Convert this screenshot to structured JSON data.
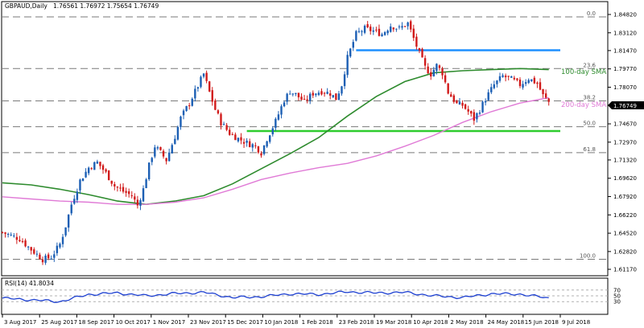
{
  "header": {
    "symbol": "GBPAUD,Daily",
    "ohlc": "1.76561 1.76972 1.75654 1.76749"
  },
  "colors": {
    "candle_up": "#1c5fb4",
    "candle_down": "#d11b1b",
    "sma100": "#2e8b2e",
    "sma200": "#e07ad6",
    "support": "#2ecc2e",
    "resistance": "#1e90ff",
    "rsi_line": "#1c3fd1",
    "price_label_bg": "#000000"
  },
  "chart_data": [
    {
      "type": "candlestick",
      "title": "GBPAUD,Daily",
      "ylim": [
        1.6102,
        1.8482
      ],
      "y_ticks": [
        "1.84820",
        "1.83120",
        "1.81470",
        "1.79770",
        "1.78070",
        "1.76370",
        "1.74670",
        "1.72970",
        "1.71320",
        "1.69620",
        "1.67920",
        "1.66220",
        "1.64520",
        "1.62820",
        "1.61170"
      ],
      "x_ticks": [
        "3 Aug 2017",
        "25 Aug 2017",
        "18 Sep 2017",
        "10 Oct 2017",
        "1 Nov 2017",
        "23 Nov 2017",
        "15 Dec 2017",
        "10 Jan 2018",
        "1 Feb 2018",
        "23 Feb 2018",
        "19 Mar 2018",
        "10 Apr 2018",
        "2 May 2018",
        "24 May 2018",
        "15 Jun 2018",
        "9 Jul 2018"
      ],
      "last_price": "1.76749",
      "close_path": [
        {
          "x": 0,
          "y": 1.646
        },
        {
          "x": 6,
          "y": 1.64
        },
        {
          "x": 10,
          "y": 1.63
        },
        {
          "x": 14,
          "y": 1.621
        },
        {
          "x": 17,
          "y": 1.623
        },
        {
          "x": 20,
          "y": 1.635
        },
        {
          "x": 22,
          "y": 1.652
        },
        {
          "x": 24,
          "y": 1.672
        },
        {
          "x": 27,
          "y": 1.694
        },
        {
          "x": 30,
          "y": 1.706
        },
        {
          "x": 33,
          "y": 1.711
        },
        {
          "x": 36,
          "y": 1.701
        },
        {
          "x": 39,
          "y": 1.689
        },
        {
          "x": 42,
          "y": 1.684
        },
        {
          "x": 45,
          "y": 1.68
        },
        {
          "x": 47,
          "y": 1.671
        },
        {
          "x": 49,
          "y": 1.686
        },
        {
          "x": 51,
          "y": 1.708
        },
        {
          "x": 53,
          "y": 1.726
        },
        {
          "x": 55,
          "y": 1.72
        },
        {
          "x": 57,
          "y": 1.713
        },
        {
          "x": 60,
          "y": 1.735
        },
        {
          "x": 62,
          "y": 1.752
        },
        {
          "x": 65,
          "y": 1.766
        },
        {
          "x": 68,
          "y": 1.782
        },
        {
          "x": 70,
          "y": 1.793
        },
        {
          "x": 72,
          "y": 1.776
        },
        {
          "x": 74,
          "y": 1.76
        },
        {
          "x": 76,
          "y": 1.748
        },
        {
          "x": 79,
          "y": 1.738
        },
        {
          "x": 82,
          "y": 1.733
        },
        {
          "x": 85,
          "y": 1.729
        },
        {
          "x": 88,
          "y": 1.726
        },
        {
          "x": 90,
          "y": 1.72
        },
        {
          "x": 92,
          "y": 1.733
        },
        {
          "x": 95,
          "y": 1.749
        },
        {
          "x": 98,
          "y": 1.769
        },
        {
          "x": 100,
          "y": 1.777
        },
        {
          "x": 102,
          "y": 1.774
        },
        {
          "x": 105,
          "y": 1.767
        },
        {
          "x": 108,
          "y": 1.775
        },
        {
          "x": 111,
          "y": 1.777
        },
        {
          "x": 114,
          "y": 1.775
        },
        {
          "x": 116,
          "y": 1.77
        },
        {
          "x": 118,
          "y": 1.783
        },
        {
          "x": 120,
          "y": 1.808
        },
        {
          "x": 123,
          "y": 1.83
        },
        {
          "x": 126,
          "y": 1.835
        },
        {
          "x": 129,
          "y": 1.833
        },
        {
          "x": 132,
          "y": 1.83
        },
        {
          "x": 135,
          "y": 1.838
        },
        {
          "x": 138,
          "y": 1.835
        },
        {
          "x": 141,
          "y": 1.84
        },
        {
          "x": 143,
          "y": 1.826
        },
        {
          "x": 145,
          "y": 1.812
        },
        {
          "x": 147,
          "y": 1.799
        },
        {
          "x": 149,
          "y": 1.793
        },
        {
          "x": 151,
          "y": 1.801
        },
        {
          "x": 153,
          "y": 1.794
        },
        {
          "x": 155,
          "y": 1.776
        },
        {
          "x": 158,
          "y": 1.765
        },
        {
          "x": 160,
          "y": 1.764
        },
        {
          "x": 162,
          "y": 1.758
        },
        {
          "x": 164,
          "y": 1.751
        },
        {
          "x": 166,
          "y": 1.76
        },
        {
          "x": 168,
          "y": 1.77
        },
        {
          "x": 171,
          "y": 1.783
        },
        {
          "x": 174,
          "y": 1.791
        },
        {
          "x": 177,
          "y": 1.788
        },
        {
          "x": 180,
          "y": 1.783
        },
        {
          "x": 183,
          "y": 1.789
        },
        {
          "x": 186,
          "y": 1.784
        },
        {
          "x": 188,
          "y": 1.773
        },
        {
          "x": 190,
          "y": 1.767
        }
      ],
      "series": [
        {
          "name": "100-day SMA",
          "x": [
            0,
            10,
            20,
            30,
            40,
            50,
            60,
            70,
            80,
            90,
            100,
            110,
            120,
            130,
            140,
            150,
            160,
            170,
            180,
            190
          ],
          "y": [
            1.692,
            1.69,
            1.686,
            1.681,
            1.675,
            1.672,
            1.675,
            1.68,
            1.691,
            1.705,
            1.719,
            1.734,
            1.754,
            1.772,
            1.786,
            1.794,
            1.796,
            1.797,
            1.798,
            1.797
          ]
        },
        {
          "name": "200-day SMA",
          "x": [
            0,
            10,
            20,
            30,
            40,
            50,
            60,
            70,
            80,
            90,
            100,
            110,
            120,
            130,
            140,
            150,
            160,
            170,
            180,
            190
          ],
          "y": [
            1.679,
            1.677,
            1.675,
            1.674,
            1.672,
            1.672,
            1.674,
            1.678,
            1.686,
            1.695,
            1.701,
            1.706,
            1.71,
            1.717,
            1.726,
            1.736,
            1.748,
            1.758,
            1.766,
            1.771
          ]
        }
      ],
      "levels": [
        {
          "name": "resistance",
          "y": 1.815,
          "x_start": 123,
          "x_end": 194
        },
        {
          "name": "support",
          "y": 1.74,
          "x_start": 85,
          "x_end": 194
        }
      ],
      "fib_levels": [
        {
          "label": "0.0",
          "y": 1.846
        },
        {
          "label": "23.6",
          "y": 1.798
        },
        {
          "label": "38.2",
          "y": 1.768
        },
        {
          "label": "50.0",
          "y": 1.744
        },
        {
          "label": "61.8",
          "y": 1.72
        },
        {
          "label": "100.0",
          "y": 1.621
        }
      ],
      "annotations": [
        "100-day SMA",
        "200-day SMA"
      ]
    },
    {
      "type": "line",
      "title": "RSI(14) 41.8034",
      "ylim": [
        0,
        100
      ],
      "y_ticks": [
        "70",
        "50",
        "30"
      ],
      "x": [
        0,
        10,
        20,
        30,
        40,
        50,
        60,
        70,
        80,
        90,
        100,
        110,
        120,
        130,
        140,
        150,
        160,
        170,
        180,
        190
      ],
      "values": [
        42,
        36,
        30,
        55,
        60,
        50,
        58,
        62,
        44,
        47,
        57,
        55,
        64,
        60,
        62,
        50,
        44,
        57,
        56,
        42
      ]
    }
  ]
}
